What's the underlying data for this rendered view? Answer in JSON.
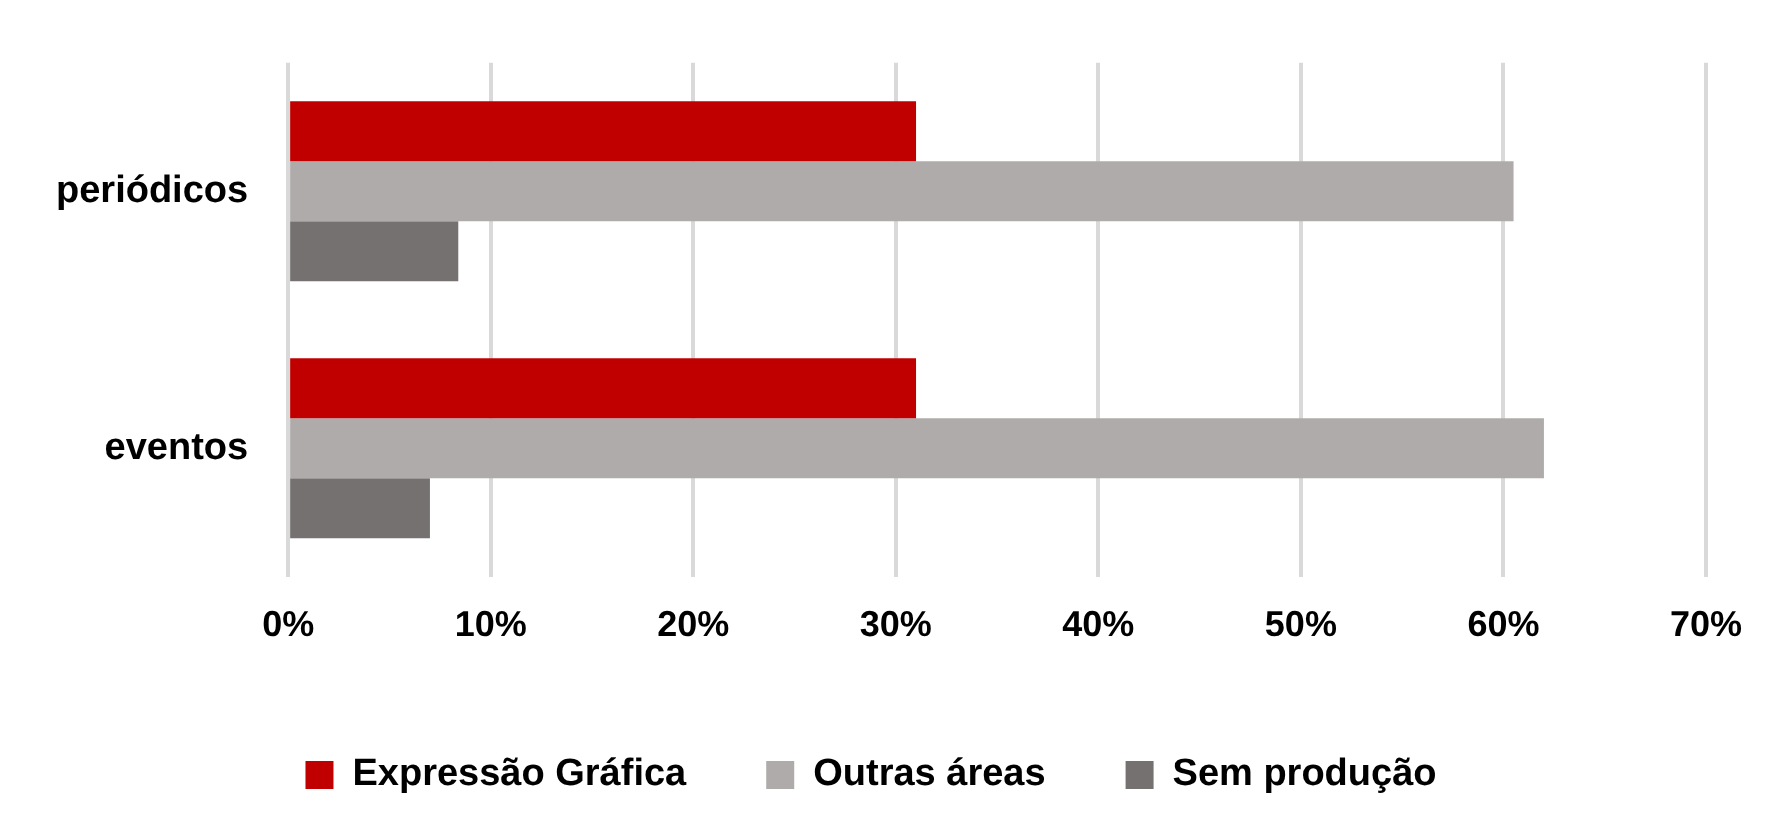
{
  "chart_data": {
    "type": "bar",
    "orientation": "horizontal",
    "categories": [
      "periódicos",
      "eventos"
    ],
    "series": [
      {
        "name": "Expressão Gráfica",
        "color": "#c00000",
        "values": [
          31,
          31
        ]
      },
      {
        "name": "Outras áreas",
        "color": "#afabab",
        "values": [
          60.5,
          62
        ]
      },
      {
        "name": "Sem produção",
        "color": "#767171",
        "values": [
          8.4,
          7
        ]
      }
    ],
    "xlim": [
      0,
      70
    ],
    "xticks": [
      {
        "value": 0,
        "label": "0%"
      },
      {
        "value": 10,
        "label": "10%"
      },
      {
        "value": 20,
        "label": "20%"
      },
      {
        "value": 30,
        "label": "30%"
      },
      {
        "value": 40,
        "label": "40%"
      },
      {
        "value": 50,
        "label": "50%"
      },
      {
        "value": 60,
        "label": "60%"
      },
      {
        "value": 70,
        "label": "70%"
      }
    ],
    "grid": "x",
    "legend": "bottom"
  }
}
